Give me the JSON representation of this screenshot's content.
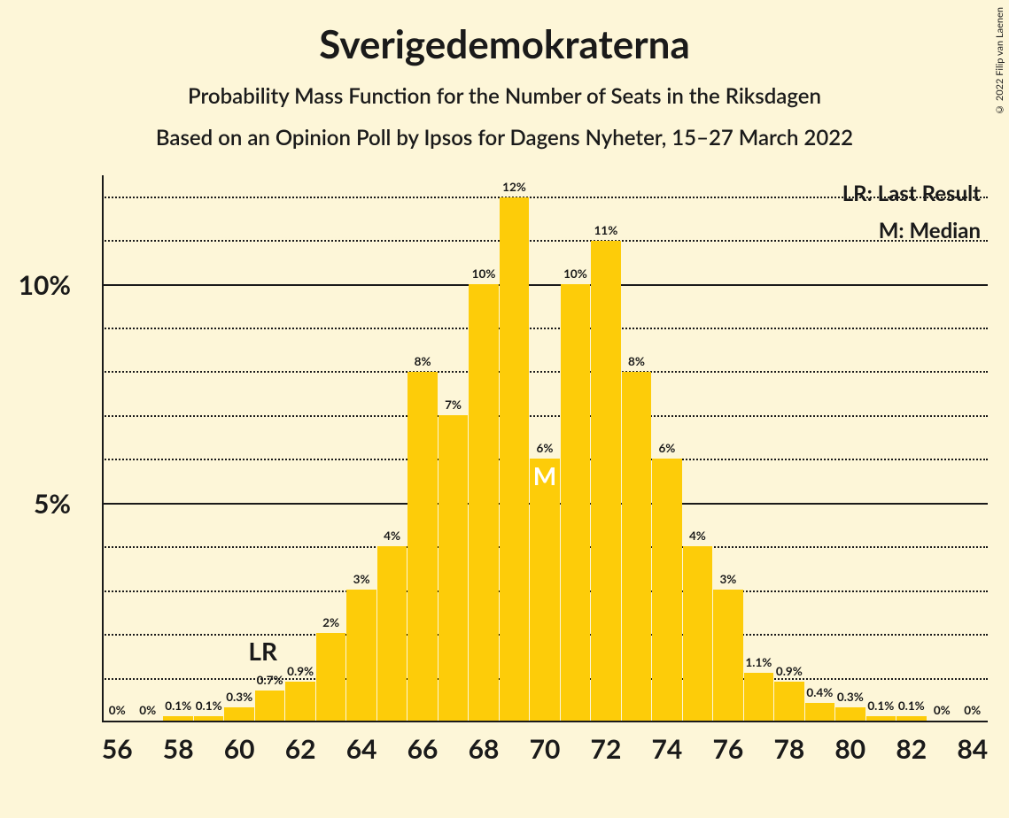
{
  "title": "Sverigedemokraterna",
  "subtitle1": "Probability Mass Function for the Number of Seats in the Riksdagen",
  "subtitle2": "Based on an Opinion Poll by Ipsos for Dagens Nyheter, 15–27 March 2022",
  "legend_lr": "LR: Last Result",
  "legend_m": "M: Median",
  "copyright": "© 2022 Filip van Laenen",
  "chart": {
    "type": "bar",
    "background_color": "#fdf6d8",
    "bar_color": "#fdcc09",
    "axis_color": "#1a1a1a",
    "grid_dotted_color": "#1a1a1a",
    "ylim": [
      0,
      12.5
    ],
    "y_major_ticks": [
      5,
      10
    ],
    "y_minor_step": 1,
    "xlim": [
      56,
      84
    ],
    "x_tick_step": 2,
    "x_tick_labels": [
      "56",
      "58",
      "60",
      "62",
      "64",
      "66",
      "68",
      "70",
      "72",
      "74",
      "76",
      "78",
      "80",
      "82",
      "84"
    ],
    "bar_width_rel": 0.97,
    "lr_seat": 62,
    "median_seat": 70,
    "bars": [
      {
        "seat": 56,
        "value": 0,
        "label": "0%"
      },
      {
        "seat": 57,
        "value": 0,
        "label": "0%"
      },
      {
        "seat": 58,
        "value": 0.1,
        "label": "0.1%"
      },
      {
        "seat": 59,
        "value": 0.1,
        "label": "0.1%"
      },
      {
        "seat": 60,
        "value": 0.3,
        "label": "0.3%"
      },
      {
        "seat": 61,
        "value": 0.7,
        "label": "0.7%"
      },
      {
        "seat": 62,
        "value": 0.9,
        "label": "0.9%"
      },
      {
        "seat": 63,
        "value": 2,
        "label": "2%"
      },
      {
        "seat": 64,
        "value": 3,
        "label": "3%"
      },
      {
        "seat": 65,
        "value": 4,
        "label": "4%"
      },
      {
        "seat": 66,
        "value": 8,
        "label": "8%"
      },
      {
        "seat": 67,
        "value": 7,
        "label": "7%"
      },
      {
        "seat": 68,
        "value": 10,
        "label": "10%"
      },
      {
        "seat": 69,
        "value": 12,
        "label": "12%"
      },
      {
        "seat": 70,
        "value": 6,
        "label": "6%"
      },
      {
        "seat": 71,
        "value": 10,
        "label": "10%"
      },
      {
        "seat": 72,
        "value": 11,
        "label": "11%"
      },
      {
        "seat": 73,
        "value": 8,
        "label": "8%"
      },
      {
        "seat": 74,
        "value": 6,
        "label": "6%"
      },
      {
        "seat": 75,
        "value": 4,
        "label": "4%"
      },
      {
        "seat": 76,
        "value": 3,
        "label": "3%"
      },
      {
        "seat": 77,
        "value": 1.1,
        "label": "1.1%"
      },
      {
        "seat": 78,
        "value": 0.9,
        "label": "0.9%"
      },
      {
        "seat": 79,
        "value": 0.4,
        "label": "0.4%"
      },
      {
        "seat": 80,
        "value": 0.3,
        "label": "0.3%"
      },
      {
        "seat": 81,
        "value": 0.1,
        "label": "0.1%"
      },
      {
        "seat": 82,
        "value": 0.1,
        "label": "0.1%"
      },
      {
        "seat": 83,
        "value": 0,
        "label": "0%"
      },
      {
        "seat": 84,
        "value": 0,
        "label": "0%"
      }
    ]
  }
}
